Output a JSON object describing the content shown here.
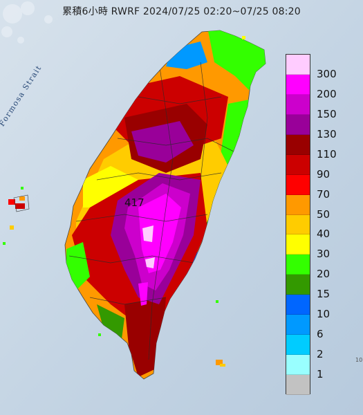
{
  "map": {
    "title": "累積6小時 RWRF 2024/07/25 02:20~07/25 08:20",
    "strait_label": "Formosa Strait",
    "peak_label": "417",
    "edge_mark": "10"
  },
  "legend": {
    "levels": [
      {
        "label": "300",
        "color": "#ffccff"
      },
      {
        "label": "200",
        "color": "#ff00ff"
      },
      {
        "label": "150",
        "color": "#cc00cc"
      },
      {
        "label": "130",
        "color": "#990099"
      },
      {
        "label": "110",
        "color": "#990000"
      },
      {
        "label": "90",
        "color": "#cc0000"
      },
      {
        "label": "70",
        "color": "#ff0000"
      },
      {
        "label": "50",
        "color": "#ff9900"
      },
      {
        "label": "40",
        "color": "#ffcc00"
      },
      {
        "label": "30",
        "color": "#ffff00"
      },
      {
        "label": "20",
        "color": "#33ff00"
      },
      {
        "label": "15",
        "color": "#339900"
      },
      {
        "label": "10",
        "color": "#0066ff"
      },
      {
        "label": "6",
        "color": "#0099ff"
      },
      {
        "label": "2",
        "color": "#00ccff"
      },
      {
        "label": "1",
        "color": "#99ffff"
      },
      {
        "label": "",
        "color": "#c2c2c2"
      }
    ]
  },
  "colors": {
    "sea": "#c9d8e6",
    "land_base": "#d9dde2"
  }
}
